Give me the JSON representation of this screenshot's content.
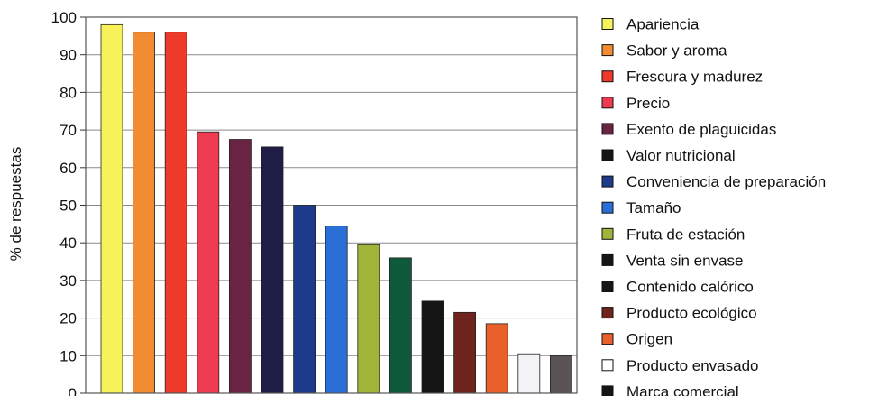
{
  "chart_data": {
    "type": "bar",
    "title": "",
    "xlabel": "",
    "ylabel": "% de respuestas",
    "ylim": [
      0,
      100
    ],
    "yticks": [
      0,
      10,
      20,
      30,
      40,
      50,
      60,
      70,
      80,
      90,
      100
    ],
    "grid": true,
    "legend_position": "right",
    "categories": [
      "Apariencia",
      "Sabor y aroma",
      "Frescura y madurez",
      "Precio",
      "Exento de plaguicidas",
      "Valor nutricional",
      "Conveniencia de preparación",
      "Tamaño",
      "Fruta de estación",
      "Venta sin envase",
      "Contenido calórico",
      "Producto ecológico",
      "Origen",
      "Producto envasado",
      "Marca comercial"
    ],
    "values": [
      98,
      96,
      96,
      69.5,
      67.5,
      65.5,
      50,
      44.5,
      39.5,
      36,
      24.5,
      21.5,
      18.5,
      10.5,
      10
    ],
    "colors": [
      "#f7f25a",
      "#f28c32",
      "#ee3a2a",
      "#ef3b52",
      "#6a2443",
      "#1f1d45",
      "#1e3a8a",
      "#2a6fd6",
      "#a3b43a",
      "#0f5a3a",
      "#151515",
      "#6e241c",
      "#e8602a",
      "#f2f2f7",
      "#5a5456"
    ],
    "legend_colors": [
      "#f7f25a",
      "#f28c32",
      "#ee3a2a",
      "#ef3b52",
      "#6a2443",
      "#151515",
      "#1e3a8a",
      "#2a6fd6",
      "#a3b43a",
      "#151515",
      "#151515",
      "#6e241c",
      "#e8602a",
      "#ffffff",
      "#151515"
    ]
  }
}
